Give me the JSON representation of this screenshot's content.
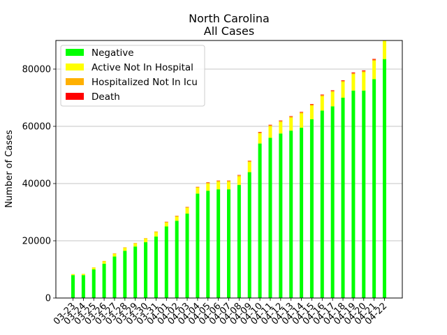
{
  "chart_data": {
    "type": "bar",
    "stacked": true,
    "title": "North Carolina",
    "subtitle": "All Cases",
    "xlabel": "",
    "ylabel": "Number of Cases",
    "ylim": [
      0,
      90000
    ],
    "yticks": [
      0,
      20000,
      40000,
      60000,
      80000
    ],
    "grid": "y",
    "legend_position": "top-left",
    "categories": [
      "03-23",
      "03-24",
      "03-25",
      "03-26",
      "03-27",
      "03-28",
      "03-29",
      "03-30",
      "03-31",
      "04-01",
      "04-02",
      "04-03",
      "04-04",
      "04-05",
      "04-06",
      "04-07",
      "04-08",
      "04-09",
      "04-10",
      "04-11",
      "04-12",
      "04-13",
      "04-14",
      "04-15",
      "04-16",
      "04-17",
      "04-18",
      "04-19",
      "04-20",
      "04-21",
      "04-22"
    ],
    "series": [
      {
        "name": "Negative",
        "color": "#00ff00",
        "values": [
          8000,
          8000,
          10000,
          12000,
          14500,
          16500,
          18000,
          19500,
          21500,
          25000,
          27000,
          29500,
          36500,
          37500,
          38000,
          38000,
          39500,
          44000,
          54000,
          56000,
          57500,
          58500,
          59500,
          62500,
          65500,
          67000,
          70000,
          72500,
          72500,
          76500,
          83500
        ]
      },
      {
        "name": "Active Not In Hospital",
        "color": "#ffff00",
        "values": [
          300,
          400,
          600,
          800,
          900,
          1000,
          1000,
          1200,
          1500,
          1300,
          1400,
          2000,
          2000,
          2500,
          2600,
          2600,
          3000,
          3500,
          3500,
          4000,
          4000,
          4500,
          5000,
          4700,
          5000,
          5000,
          5500,
          5700,
          6400,
          6400,
          6500
        ]
      },
      {
        "name": "Hospitalized Not In Icu",
        "color": "#ffb000",
        "values": [
          50,
          50,
          100,
          150,
          200,
          200,
          200,
          200,
          250,
          300,
          300,
          300,
          300,
          350,
          350,
          350,
          400,
          400,
          400,
          400,
          400,
          400,
          400,
          400,
          400,
          400,
          400,
          400,
          400,
          400,
          400
        ]
      },
      {
        "name": "Death",
        "color": "#ff0000",
        "values": [
          0,
          0,
          0,
          0,
          0,
          0,
          0,
          0,
          0,
          50,
          50,
          50,
          50,
          100,
          100,
          100,
          100,
          100,
          150,
          150,
          150,
          150,
          150,
          200,
          200,
          200,
          200,
          250,
          250,
          250,
          300
        ]
      }
    ]
  }
}
